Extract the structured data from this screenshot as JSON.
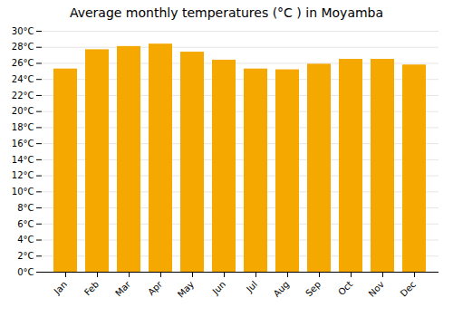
{
  "chart_data": {
    "type": "bar",
    "title": "Average monthly temperatures (°C ) in Moyamba",
    "categories": [
      "Jan",
      "Feb",
      "Mar",
      "Apr",
      "May",
      "Jun",
      "Jul",
      "Aug",
      "Sep",
      "Oct",
      "Nov",
      "Dec"
    ],
    "values": [
      25.3,
      27.7,
      28.1,
      28.4,
      27.4,
      26.4,
      25.3,
      25.2,
      25.9,
      26.5,
      26.5,
      25.8
    ],
    "color": "#F5A800",
    "ylim": [
      0,
      30
    ],
    "yticks": [
      {
        "value": 0,
        "label": "0°C"
      },
      {
        "value": 2,
        "label": "2°C"
      },
      {
        "value": 4,
        "label": "4°C"
      },
      {
        "value": 6,
        "label": "6°C"
      },
      {
        "value": 8,
        "label": "8°C"
      },
      {
        "value": 10,
        "label": "10°C"
      },
      {
        "value": 12,
        "label": "12°C"
      },
      {
        "value": 14,
        "label": "14°C"
      },
      {
        "value": 16,
        "label": "16°C"
      },
      {
        "value": 18,
        "label": "18°C"
      },
      {
        "value": 20,
        "label": "20°C"
      },
      {
        "value": 22,
        "label": "22°C"
      },
      {
        "value": 24,
        "label": "24°C"
      },
      {
        "value": 26,
        "label": "26°C"
      },
      {
        "value": 28,
        "label": "28°C"
      },
      {
        "value": 30,
        "label": "30°C"
      }
    ],
    "grid": true
  }
}
